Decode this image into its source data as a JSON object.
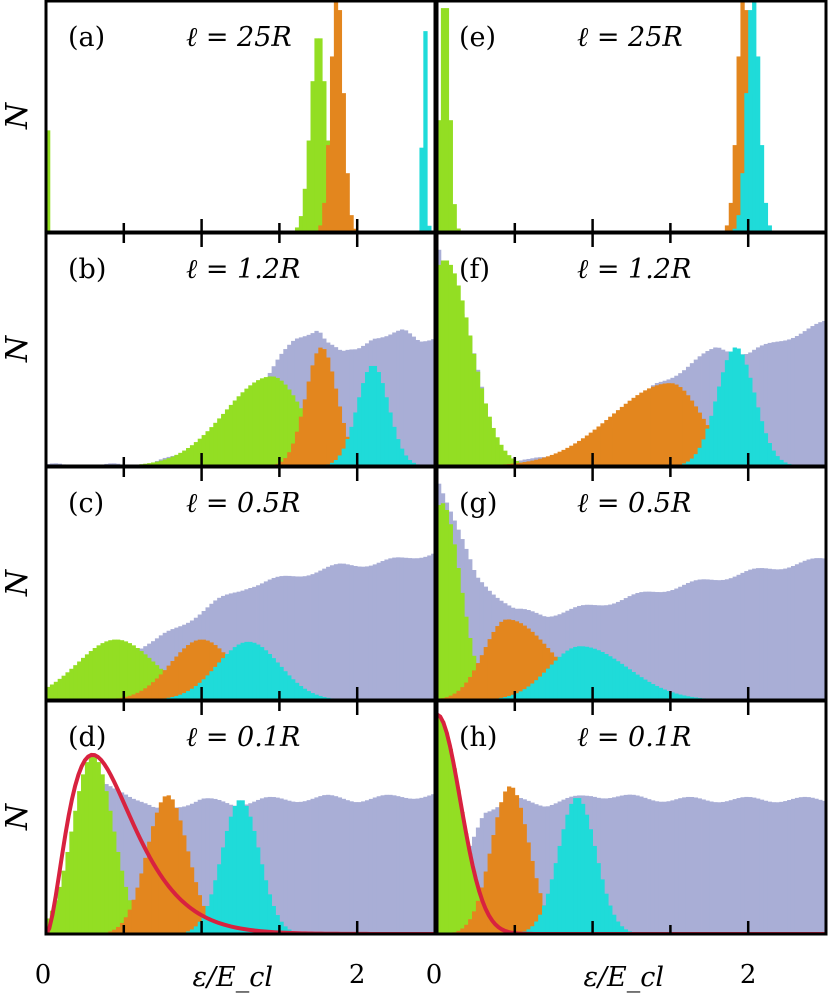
{
  "chart_data": {
    "type": "histogram-grid",
    "xlabel": "ε/E_cl",
    "ylabel": "N",
    "xlim": [
      0,
      2.5
    ],
    "x_ticks": [
      0,
      1,
      2
    ],
    "x_tick_labels": [
      "0",
      "",
      "2"
    ],
    "x_minor_ticks": [
      0.5,
      1.5
    ],
    "colors": {
      "total": "#a9aed6",
      "level1": "#93de23",
      "level2": "#e3861e",
      "level3": "#1fdbd9",
      "fit": "#d8223f"
    },
    "panels": [
      {
        "id": "a",
        "label": "(a)",
        "title": "ℓ = 25R",
        "column": 0,
        "row": 0,
        "total": [],
        "peaks": [
          {
            "series": "level1",
            "mu": 0.0,
            "sigma": 0.01,
            "amp": 1.0
          },
          {
            "series": "level1",
            "mu": 1.75,
            "sigma": 0.05,
            "amp": 0.9
          },
          {
            "series": "level2",
            "mu": 1.87,
            "sigma": 0.04,
            "amp": 1.1
          },
          {
            "series": "level3",
            "mu": 2.43,
            "sigma": 0.012,
            "amp": 1.1
          }
        ]
      },
      {
        "id": "b",
        "label": "(b)",
        "title": "ℓ = 1.2R",
        "column": 0,
        "row": 1,
        "total": [
          [
            0.5,
            0.0
          ],
          [
            0.8,
            0.03
          ],
          [
            1.0,
            0.08
          ],
          [
            1.2,
            0.2
          ],
          [
            1.4,
            0.38
          ],
          [
            1.5,
            0.48
          ],
          [
            1.6,
            0.56
          ],
          [
            1.7,
            0.6
          ],
          [
            1.75,
            0.62
          ],
          [
            1.8,
            0.56
          ],
          [
            1.9,
            0.5
          ],
          [
            2.0,
            0.52
          ],
          [
            2.1,
            0.58
          ],
          [
            2.2,
            0.58
          ],
          [
            2.3,
            0.6
          ],
          [
            2.4,
            0.56
          ],
          [
            2.5,
            0.58
          ]
        ],
        "peaks": [
          {
            "series": "level1",
            "mu": 1.45,
            "sigma": 0.2,
            "sigmaL": 0.3,
            "amp": 0.4
          },
          {
            "series": "level2",
            "mu": 1.77,
            "sigma": 0.1,
            "amp": 0.53
          },
          {
            "series": "level3",
            "mu": 2.1,
            "sigma": 0.1,
            "amp": 0.45
          }
        ]
      },
      {
        "id": "c",
        "label": "(c)",
        "title": "ℓ = 0.5R",
        "column": 0,
        "row": 2,
        "total": [
          [
            0.0,
            0.0
          ],
          [
            0.1,
            0.05
          ],
          [
            0.3,
            0.15
          ],
          [
            0.5,
            0.21
          ],
          [
            0.7,
            0.26
          ],
          [
            0.9,
            0.35
          ],
          [
            1.1,
            0.44
          ],
          [
            1.3,
            0.51
          ],
          [
            1.5,
            0.54
          ],
          [
            1.7,
            0.57
          ],
          [
            1.9,
            0.6
          ],
          [
            2.1,
            0.61
          ],
          [
            2.3,
            0.63
          ],
          [
            2.5,
            0.66
          ]
        ],
        "peaks": [
          {
            "series": "level1",
            "mu": 0.45,
            "sigma": 0.25,
            "amp": 0.27
          },
          {
            "series": "level2",
            "mu": 1.0,
            "sigma": 0.2,
            "amp": 0.27
          },
          {
            "series": "level3",
            "mu": 1.3,
            "sigma": 0.2,
            "amp": 0.26
          }
        ]
      },
      {
        "id": "d",
        "label": "(d)",
        "title": "ℓ = 0.1R",
        "column": 0,
        "row": 3,
        "total": [
          [
            0.0,
            0.0
          ],
          [
            0.3,
            0.68
          ],
          [
            0.5,
            0.64
          ],
          [
            0.7,
            0.55
          ],
          [
            1.0,
            0.6
          ],
          [
            1.2,
            0.58
          ],
          [
            1.4,
            0.6
          ],
          [
            1.6,
            0.6
          ],
          [
            1.8,
            0.61
          ],
          [
            2.0,
            0.6
          ],
          [
            2.2,
            0.61
          ],
          [
            2.5,
            0.62
          ]
        ],
        "peaks": [
          {
            "series": "level1",
            "mu": 0.3,
            "sigma": 0.13,
            "amp": 0.8
          },
          {
            "series": "level2",
            "mu": 0.78,
            "sigma": 0.13,
            "amp": 0.62
          },
          {
            "series": "level3",
            "mu": 1.25,
            "sigma": 0.12,
            "amp": 0.6
          }
        ],
        "fit": {
          "type": "chi2-like",
          "peak_x": 0.3,
          "peak_y": 0.8
        }
      },
      {
        "id": "e",
        "label": "(e)",
        "title": "ℓ = 25R",
        "column": 1,
        "row": 0,
        "total": [],
        "peaks": [
          {
            "series": "level1",
            "mu": 0.05,
            "sigma": 0.03,
            "amp": 1.1
          },
          {
            "series": "level2",
            "mu": 1.97,
            "sigma": 0.04,
            "amp": 1.1
          },
          {
            "series": "level3",
            "mu": 2.03,
            "sigma": 0.04,
            "amp": 1.1
          }
        ]
      },
      {
        "id": "f",
        "label": "(f)",
        "title": "ℓ = 1.2R",
        "column": 1,
        "row": 1,
        "total": [
          [
            0.0,
            1.0
          ],
          [
            0.2,
            0.6
          ],
          [
            0.4,
            0.02
          ],
          [
            0.6,
            0.02
          ],
          [
            1.0,
            0.1
          ],
          [
            1.2,
            0.22
          ],
          [
            1.4,
            0.36
          ],
          [
            1.6,
            0.44
          ],
          [
            1.8,
            0.53
          ],
          [
            2.0,
            0.5
          ],
          [
            2.2,
            0.56
          ],
          [
            2.5,
            0.64
          ]
        ],
        "peaks": [
          {
            "series": "level1",
            "mu": 0.05,
            "sigma": 0.17,
            "amp": 0.92
          },
          {
            "series": "level2",
            "mu": 1.5,
            "sigma": 0.2,
            "sigmaL": 0.38,
            "amp": 0.37
          },
          {
            "series": "level3",
            "mu": 1.92,
            "sigma": 0.12,
            "amp": 0.53
          }
        ]
      },
      {
        "id": "g",
        "label": "(g)",
        "title": "ℓ = 0.5R",
        "column": 1,
        "row": 2,
        "total": [
          [
            0.0,
            1.0
          ],
          [
            0.25,
            0.55
          ],
          [
            0.5,
            0.4
          ],
          [
            0.7,
            0.38
          ],
          [
            1.0,
            0.42
          ],
          [
            1.5,
            0.5
          ],
          [
            2.0,
            0.57
          ],
          [
            2.5,
            0.63
          ]
        ],
        "peaks": [
          {
            "series": "level1",
            "mu": 0.03,
            "sigma": 0.12,
            "amp": 0.88
          },
          {
            "series": "level2",
            "mu": 0.45,
            "sigma": 0.15,
            "sigmaR": 0.28,
            "amp": 0.36
          },
          {
            "series": "level3",
            "mu": 0.92,
            "sigma": 0.2,
            "sigmaR": 0.3,
            "amp": 0.24
          }
        ]
      },
      {
        "id": "h",
        "label": "(h)",
        "title": "ℓ = 0.1R",
        "column": 1,
        "row": 3,
        "total": [
          [
            0.0,
            0.0
          ],
          [
            0.3,
            0.55
          ],
          [
            0.5,
            0.6
          ],
          [
            0.7,
            0.58
          ],
          [
            1.0,
            0.62
          ],
          [
            1.5,
            0.6
          ],
          [
            2.0,
            0.6
          ],
          [
            2.5,
            0.6
          ]
        ],
        "peaks": [
          {
            "series": "level1",
            "mu": 0.0,
            "sigma": 0.15,
            "amp": 0.98
          },
          {
            "series": "level2",
            "mu": 0.47,
            "sigma": 0.12,
            "amp": 0.66
          },
          {
            "series": "level3",
            "mu": 0.9,
            "sigma": 0.12,
            "amp": 0.61
          }
        ],
        "fit": {
          "type": "half-gaussian",
          "peak_x": 0.0,
          "peak_y": 0.98
        }
      }
    ]
  }
}
